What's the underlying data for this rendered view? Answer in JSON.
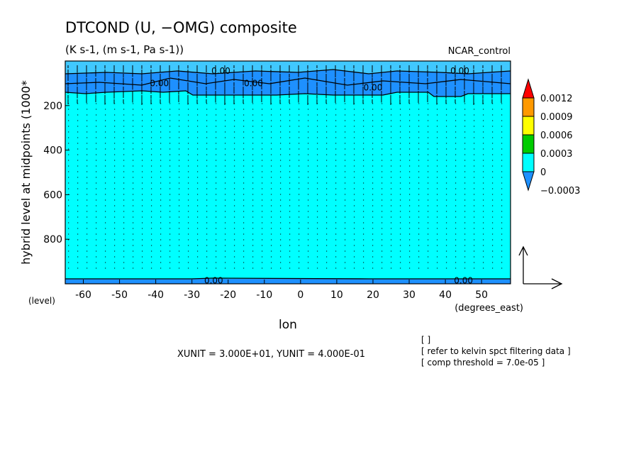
{
  "chart_data": {
    "type": "heatmap",
    "title": "DTCOND (U, −OMG) composite",
    "subtitle": "(K s-1, (m s-1, Pa s-1))",
    "run_label": "NCAR_control",
    "xlabel": "lon",
    "xunit": "(degrees_east)",
    "ylabel": "hybrid level at midpoints (1000*",
    "yunit": "(level)",
    "xlim": [
      -65,
      58
    ],
    "ylim": [
      1000,
      0
    ],
    "y_reversed": true,
    "x_ticks": [
      -60,
      -50,
      -40,
      -30,
      -20,
      -10,
      0,
      10,
      20,
      30,
      40,
      50
    ],
    "y_ticks": [
      200,
      400,
      600,
      800
    ],
    "colorbar": {
      "levels": [
        "0.0012",
        "0.0009",
        "0.0006",
        "0.0003",
        "0",
        "−0.0003"
      ],
      "colors": [
        "#ff0000",
        "#ff9900",
        "#ffff00",
        "#00cc00",
        "#00ffff",
        "#1e90ff"
      ],
      "extend": "both"
    },
    "field_regions": [
      {
        "range": "-0.0003 to 0",
        "color": "#1e90ff",
        "where": "upper levels (0–~150)"
      },
      {
        "range": "0 to 0.0003",
        "color": "#00ffff",
        "where": "bulk of domain (~150–1000)"
      }
    ],
    "contour_labels": [
      {
        "text": "0.00",
        "x": -22,
        "y": 45
      },
      {
        "text": "0.00",
        "x": 44,
        "y": 45
      },
      {
        "text": "0.00",
        "x": -39,
        "y": 100
      },
      {
        "text": "0.00",
        "x": -13,
        "y": 100
      },
      {
        "text": "0.00",
        "x": 20,
        "y": 120
      },
      {
        "text": "0.00",
        "x": -24,
        "y": 985
      },
      {
        "text": "0.00",
        "x": 45,
        "y": 985
      }
    ],
    "vector_reference": {
      "label": "XUNIT = 3.000E+01, YUNIT = 4.000E-01",
      "xunit": 30.0,
      "yunit": 0.4
    },
    "notes": [
      "[  ]",
      "[ refer to kelvin spct filtering data ]",
      "[ comp threshold = 7.0e-05 ]"
    ]
  }
}
